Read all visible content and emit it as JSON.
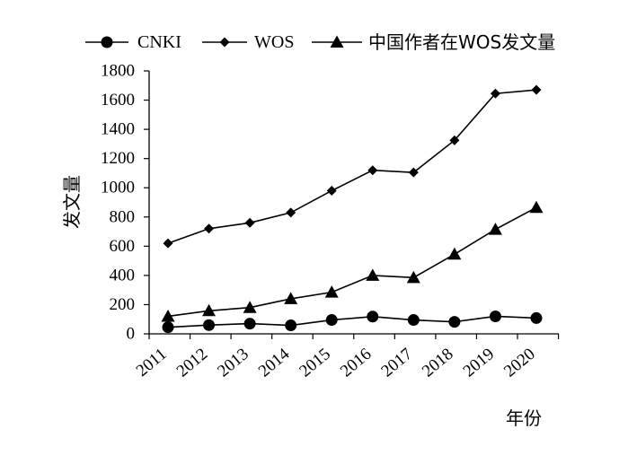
{
  "chart_data": {
    "type": "line",
    "title": "",
    "xlabel": "年份",
    "ylabel": "发文量",
    "categories": [
      "2011",
      "2012",
      "2013",
      "2014",
      "2015",
      "2016",
      "2017",
      "2018",
      "2019",
      "2020"
    ],
    "y_ticks": [
      "0",
      "200",
      "400",
      "600",
      "800",
      "1000",
      "1200",
      "1400",
      "1600",
      "1800"
    ],
    "ylim": [
      0,
      1800
    ],
    "grid": false,
    "legend_position": "top",
    "series": [
      {
        "name": "CNKI",
        "marker": "circle",
        "values": [
          45,
          60,
          70,
          58,
          95,
          118,
          95,
          82,
          120,
          108
        ]
      },
      {
        "name": "WOS",
        "marker": "diamond",
        "values": [
          620,
          720,
          760,
          830,
          980,
          1120,
          1105,
          1325,
          1645,
          1670
        ]
      },
      {
        "name": "中国作者在WOS发文量",
        "marker": "triangle",
        "values": [
          120,
          158,
          180,
          240,
          285,
          400,
          385,
          545,
          715,
          865
        ]
      }
    ]
  }
}
